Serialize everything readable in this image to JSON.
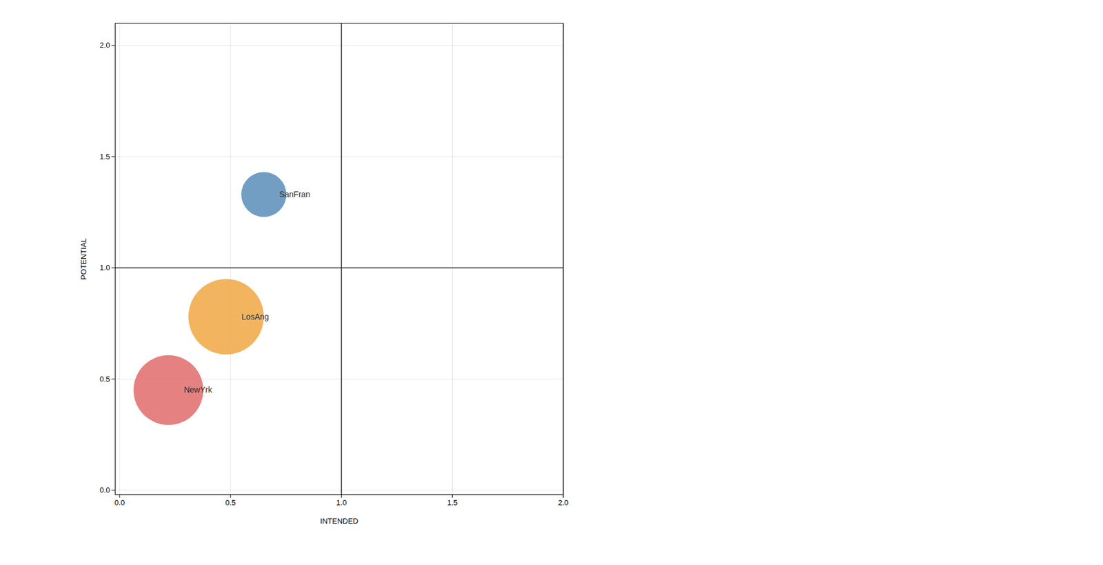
{
  "chart_data": {
    "type": "scatter",
    "xlabel": "INTENDED",
    "ylabel": "POTENTIAL",
    "points": [
      {
        "label": "SanFran",
        "x": 0.65,
        "y": 1.33,
        "size": 2500,
        "color": "#5b8db8"
      },
      {
        "label": "LosAng",
        "x": 0.48,
        "y": 0.78,
        "size": 7000,
        "color": "#f0a742"
      },
      {
        "label": "NewYrk",
        "x": 0.22,
        "y": 0.45,
        "size": 6000,
        "color": "#e06b6b"
      }
    ],
    "xlim": [
      -0.02,
      2.0
    ],
    "ylim": [
      -0.02,
      2.1
    ],
    "xticks": [
      {
        "value": 0.0,
        "label": "0.0"
      },
      0.5,
      {
        "value": 1.0,
        "label": "1.0"
      },
      1.5,
      {
        "value": 2.0,
        "label": "2.0"
      }
    ],
    "yticks": [
      {
        "value": 0.0,
        "label": "0.0"
      },
      0.5,
      {
        "value": 1.0,
        "label": "1.0"
      },
      1.5,
      {
        "value": 2.0,
        "label": "2.0"
      }
    ],
    "hline": 1.0,
    "vline": 1.0,
    "grid": true
  }
}
